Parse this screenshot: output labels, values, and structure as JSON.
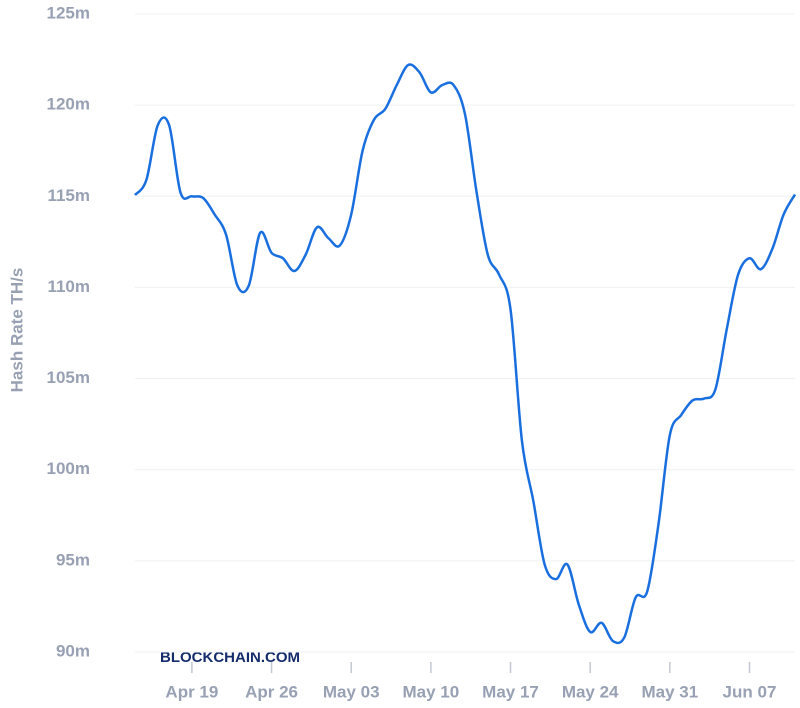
{
  "chart_data": {
    "type": "line",
    "y_label": "Hash Rate TH/s",
    "watermark": "BLOCKCHAIN.COM",
    "x": [
      "Apr 14",
      "Apr 15",
      "Apr 16",
      "Apr 17",
      "Apr 18",
      "Apr 19",
      "Apr 20",
      "Apr 21",
      "Apr 22",
      "Apr 23",
      "Apr 24",
      "Apr 25",
      "Apr 26",
      "Apr 27",
      "Apr 28",
      "Apr 29",
      "Apr 30",
      "May 01",
      "May 02",
      "May 03",
      "May 04",
      "May 05",
      "May 06",
      "May 07",
      "May 08",
      "May 09",
      "May 10",
      "May 11",
      "May 12",
      "May 13",
      "May 14",
      "May 15",
      "May 16",
      "May 17",
      "May 18",
      "May 19",
      "May 20",
      "May 21",
      "May 22",
      "May 23",
      "May 24",
      "May 25",
      "May 26",
      "May 27",
      "May 28",
      "May 29",
      "May 30",
      "May 31",
      "Jun 01",
      "Jun 02",
      "Jun 03",
      "Jun 04",
      "Jun 05",
      "Jun 06",
      "Jun 07",
      "Jun 08",
      "Jun 09",
      "Jun 10",
      "Jun 11"
    ],
    "series": [
      {
        "name": "Hash Rate",
        "color": "#1a6fdf",
        "values": [
          115.07,
          115.9,
          118.9,
          118.9,
          115.2,
          115.0,
          114.9,
          114.0,
          112.9,
          110.1,
          110.1,
          113.0,
          111.9,
          111.6,
          110.9,
          111.8,
          113.3,
          112.7,
          112.3,
          114.0,
          117.5,
          119.2,
          119.8,
          121.1,
          122.2,
          121.8,
          120.7,
          121.1,
          121.1,
          119.5,
          115.3,
          111.8,
          110.7,
          108.8,
          101.6,
          98.3,
          94.8,
          94.0,
          94.8,
          92.6,
          91.1,
          91.6,
          90.6,
          90.8,
          93.0,
          93.3,
          97.0,
          101.9,
          103.0,
          103.8,
          103.9,
          104.4,
          107.7,
          110.7,
          111.6,
          111.0,
          112.1,
          114.0,
          115.1
        ]
      }
    ],
    "xticks": [
      "Apr 19",
      "Apr 26",
      "May 03",
      "May 10",
      "May 17",
      "May 24",
      "May 31",
      "Jun 07"
    ],
    "ylim": [
      90,
      125
    ],
    "yticks": [
      {
        "value": 90,
        "label": "90m"
      },
      {
        "value": 95,
        "label": "95m"
      },
      {
        "value": 100,
        "label": "100m"
      },
      {
        "value": 105,
        "label": "105m"
      },
      {
        "value": 110,
        "label": "110m"
      },
      {
        "value": 115,
        "label": "115m"
      },
      {
        "value": 120,
        "label": "120m"
      },
      {
        "value": 125,
        "label": "125m"
      }
    ],
    "grid": true
  }
}
